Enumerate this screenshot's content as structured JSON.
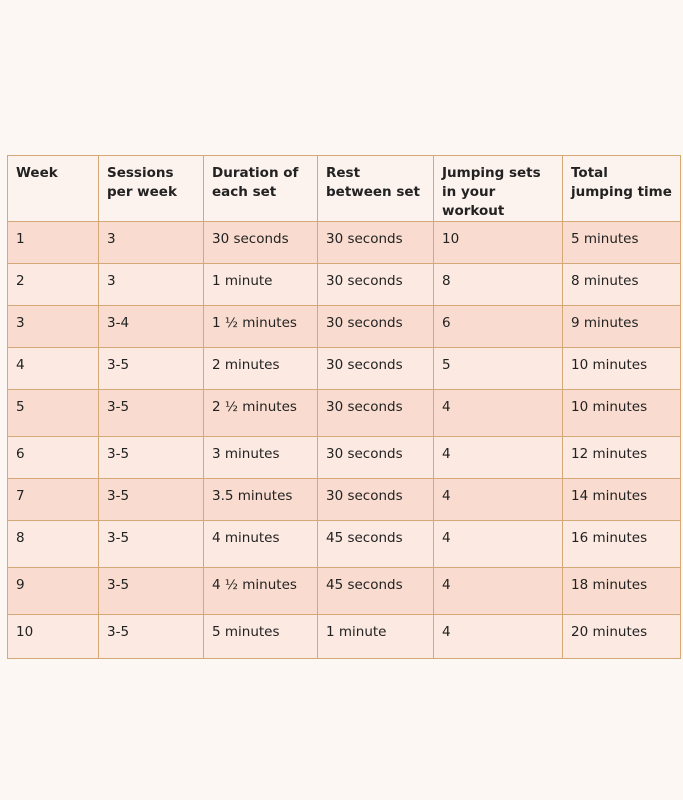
{
  "table": {
    "header": [
      "Week",
      "Sessions per week",
      "Duration of each set",
      "Rest between set",
      "Jumping sets in your workout",
      "Total jumping time"
    ],
    "rows": [
      [
        "1",
        "3",
        "30 seconds",
        "30 seconds",
        "10",
        "5 minutes"
      ],
      [
        "2",
        "3",
        "1 minute",
        "30 seconds",
        "8",
        "8 minutes"
      ],
      [
        "3",
        "3-4",
        "1 ½ minutes",
        "30 seconds",
        "6",
        "9 minutes"
      ],
      [
        "4",
        "3-5",
        "2 minutes",
        "30 seconds",
        "5",
        "10 minutes"
      ],
      [
        "5",
        "3-5",
        "2 ½ minutes",
        "30 seconds",
        "4",
        "10 minutes"
      ],
      [
        "6",
        "3-5",
        "3 minutes",
        "30 seconds",
        "4",
        "12 minutes"
      ],
      [
        "7",
        "3-5",
        "3.5 minutes",
        "30 seconds",
        "4",
        "14 minutes"
      ],
      [
        "8",
        "3-5",
        "4 minutes",
        "45 seconds",
        "4",
        "16 minutes"
      ],
      [
        "9",
        "3-5",
        "4 ½ minutes",
        "45 seconds",
        "4",
        "18 minutes"
      ],
      [
        "10",
        "3-5",
        "5 minutes",
        "1 minute",
        "4",
        "20 minutes"
      ]
    ]
  }
}
